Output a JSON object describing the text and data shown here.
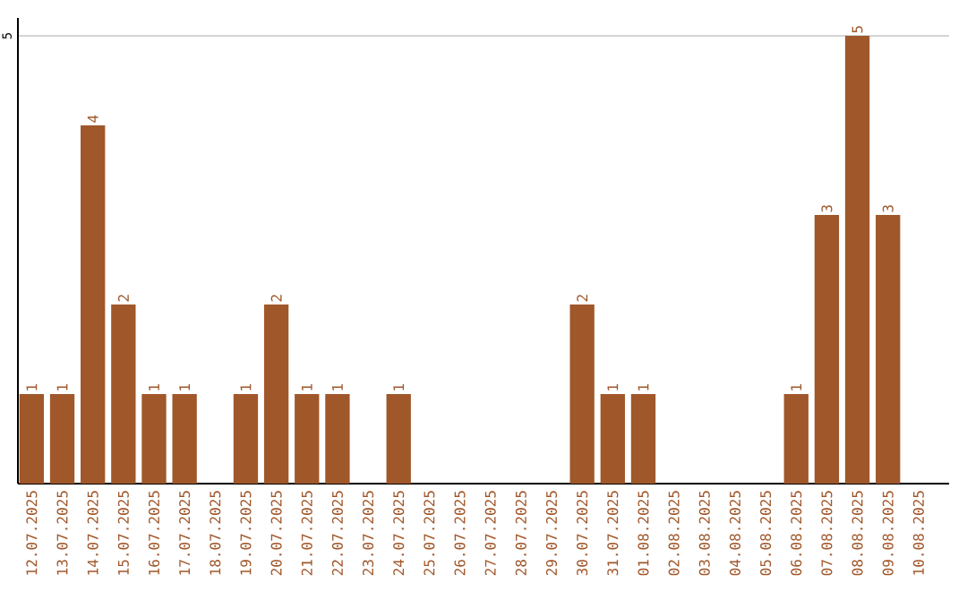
{
  "chart_data": {
    "type": "bar",
    "categories": [
      "12.07.2025",
      "13.07.2025",
      "14.07.2025",
      "15.07.2025",
      "16.07.2025",
      "17.07.2025",
      "18.07.2025",
      "19.07.2025",
      "20.07.2025",
      "21.07.2025",
      "22.07.2025",
      "23.07.2025",
      "24.07.2025",
      "25.07.2025",
      "26.07.2025",
      "27.07.2025",
      "28.07.2025",
      "29.07.2025",
      "30.07.2025",
      "31.07.2025",
      "01.08.2025",
      "02.08.2025",
      "03.08.2025",
      "04.08.2025",
      "05.08.2025",
      "06.08.2025",
      "07.08.2025",
      "08.08.2025",
      "09.08.2025",
      "10.08.2025"
    ],
    "values": [
      1,
      1,
      4,
      2,
      1,
      1,
      0,
      1,
      2,
      1,
      1,
      0,
      1,
      0,
      0,
      0,
      0,
      0,
      2,
      1,
      1,
      0,
      0,
      0,
      0,
      1,
      3,
      5,
      3,
      0
    ],
    "value_labels": [
      "1",
      "1",
      "4",
      "2",
      "1",
      "1",
      null,
      "1",
      "2",
      "1",
      "1",
      null,
      "1",
      null,
      null,
      null,
      null,
      null,
      "2",
      "1",
      "1",
      null,
      null,
      null,
      null,
      "1",
      "3",
      "5",
      "3",
      null
    ],
    "color": "#a0572a",
    "ylim": [
      0,
      5.2
    ],
    "yticks": [
      5
    ],
    "grid": "y"
  }
}
